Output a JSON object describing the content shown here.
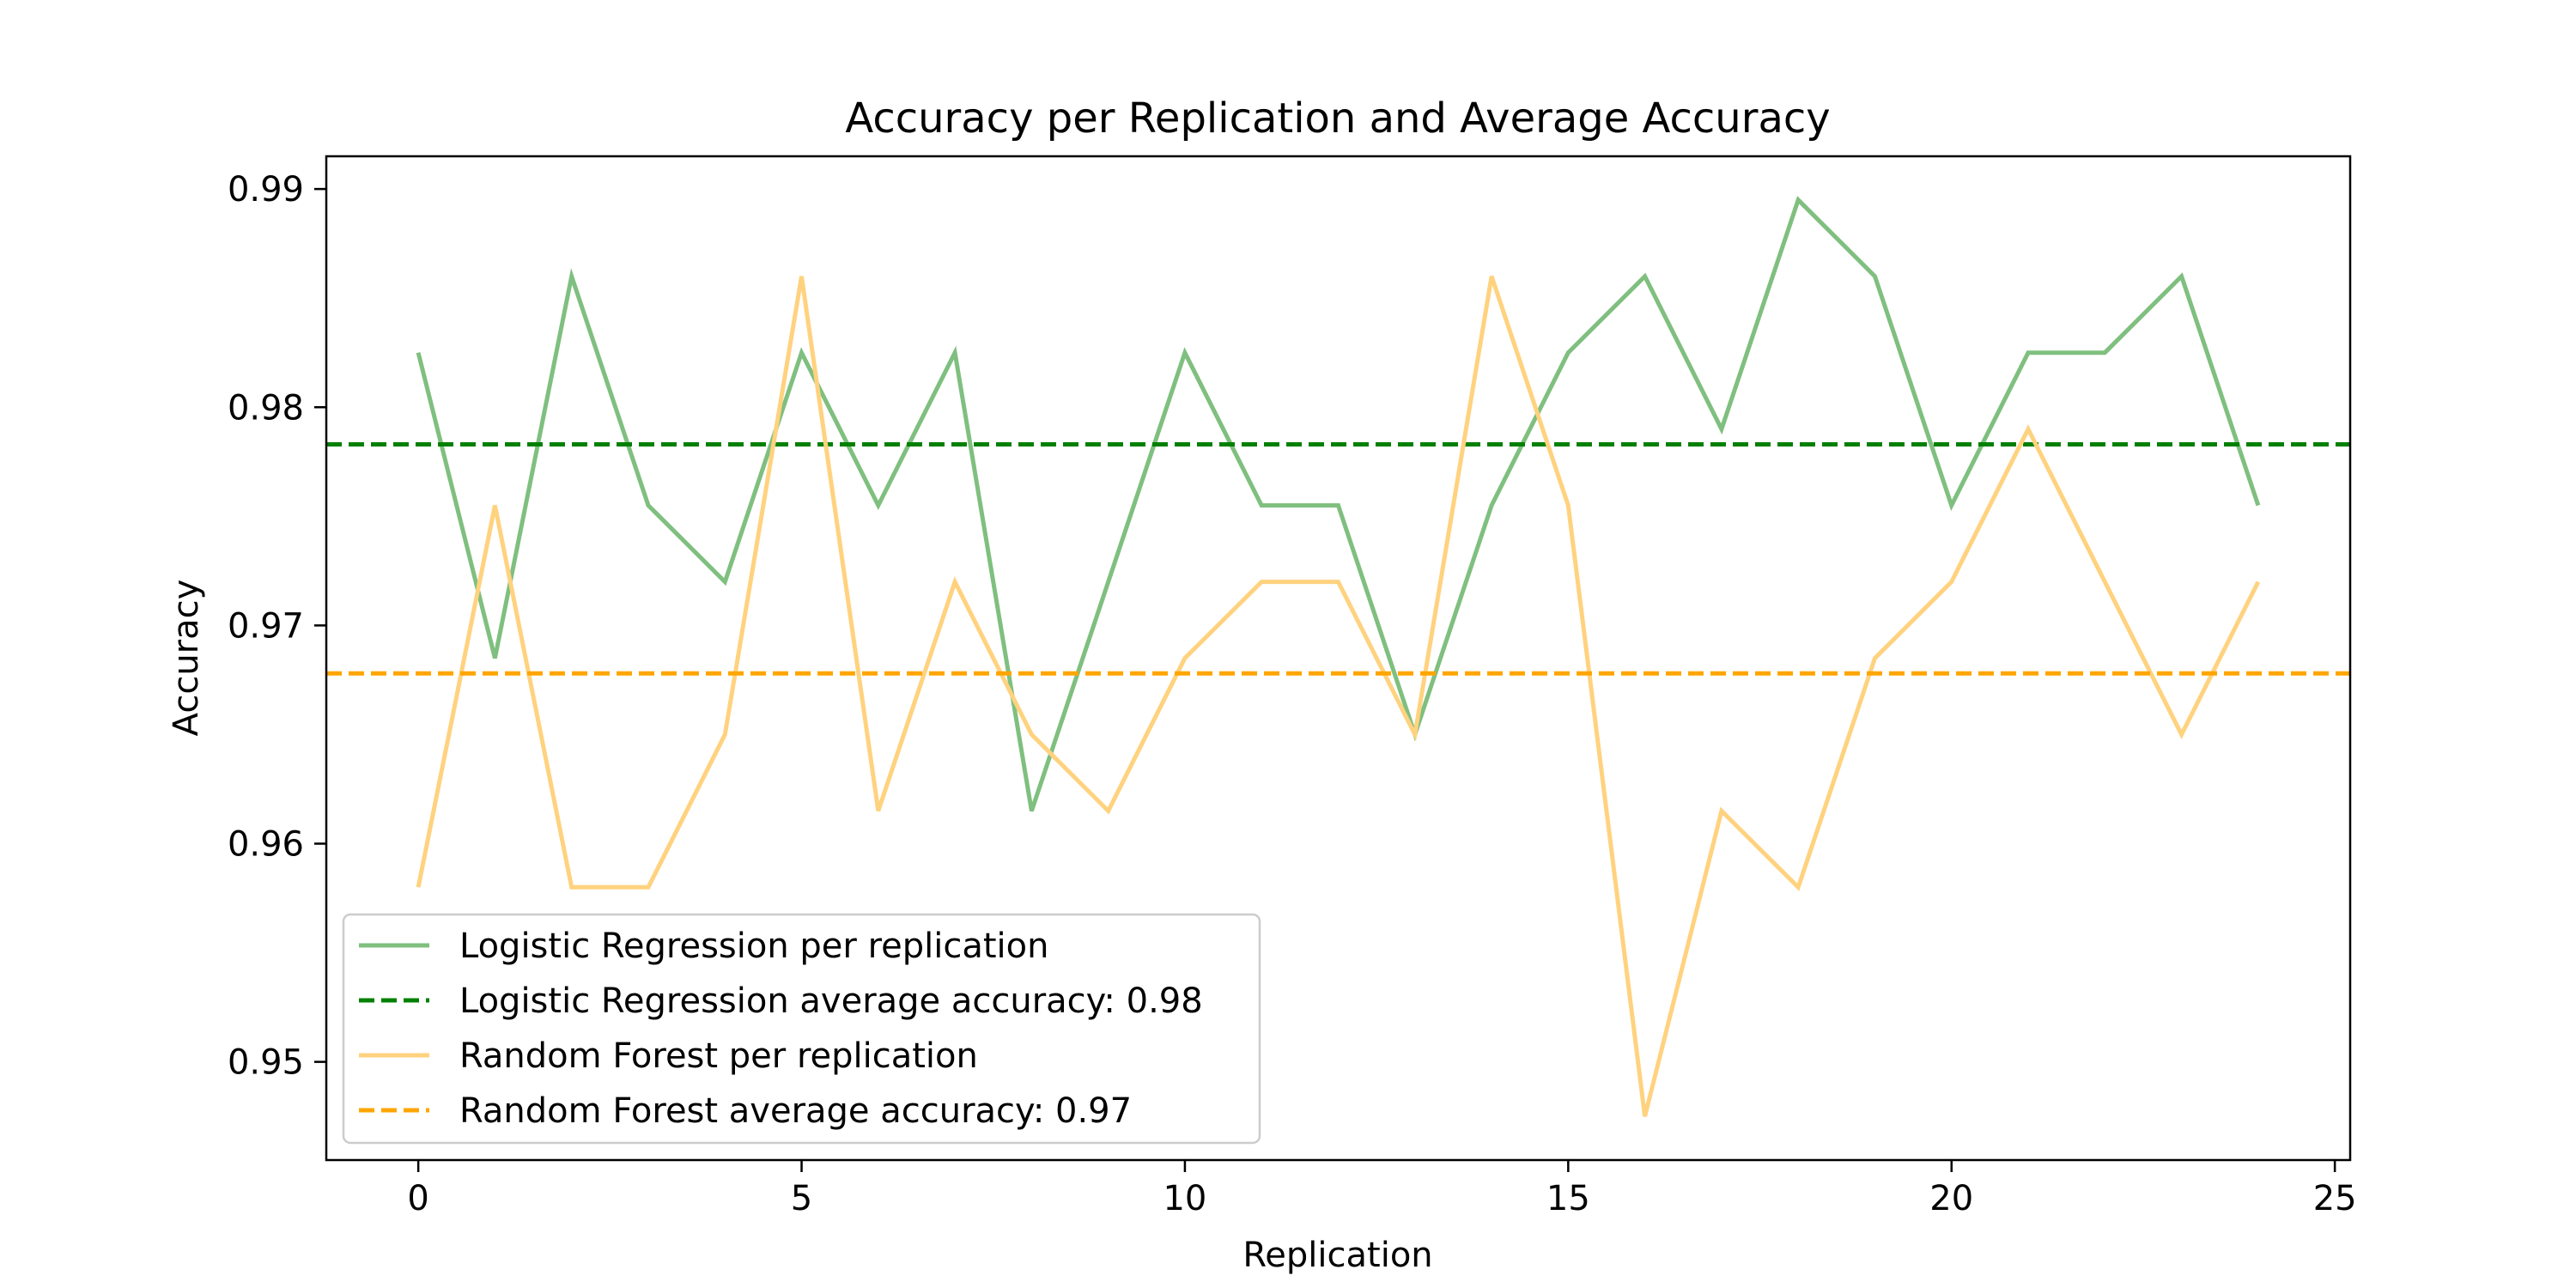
{
  "chart_data": {
    "type": "line",
    "title": "Accuracy per Replication and Average Accuracy",
    "xlabel": "Replication",
    "ylabel": "Accuracy",
    "xlim": [
      -1.2,
      25.2
    ],
    "ylim": [
      0.9455,
      0.9915
    ],
    "xticks": [
      0,
      5,
      10,
      15,
      20,
      25
    ],
    "yticks": [
      0.95,
      0.96,
      0.97,
      0.98,
      0.99
    ],
    "ytick_labels": [
      "0.95",
      "0.96",
      "0.97",
      "0.98",
      "0.99"
    ],
    "grid": false,
    "legend_position": "lower-left",
    "x": [
      0,
      1,
      2,
      3,
      4,
      5,
      6,
      7,
      8,
      9,
      10,
      11,
      12,
      13,
      14,
      15,
      16,
      17,
      18,
      19,
      20,
      21,
      22,
      23,
      24
    ],
    "series": [
      {
        "name": "Logistic Regression per replication",
        "style": "solid",
        "color": "#7fbf7f",
        "values": [
          0.9825,
          0.9685,
          0.986,
          0.9755,
          0.972,
          0.9825,
          0.9755,
          0.9825,
          0.9615,
          0.972,
          0.9825,
          0.9755,
          0.9755,
          0.965,
          0.9755,
          0.9825,
          0.986,
          0.979,
          0.9895,
          0.986,
          0.9755,
          0.9825,
          0.9825,
          0.986,
          0.9755
        ]
      },
      {
        "name": "Logistic Regression average accuracy: 0.98",
        "style": "dashed",
        "color": "#008000",
        "constant": 0.9783
      },
      {
        "name": "Random Forest per replication",
        "style": "solid",
        "color": "#ffd27f",
        "values": [
          0.958,
          0.9755,
          0.958,
          0.958,
          0.965,
          0.986,
          0.9615,
          0.972,
          0.965,
          0.9615,
          0.9685,
          0.972,
          0.972,
          0.965,
          0.986,
          0.9755,
          0.9475,
          0.9615,
          0.958,
          0.9685,
          0.972,
          0.979,
          0.972,
          0.965,
          0.972
        ]
      },
      {
        "name": "Random Forest average accuracy: 0.97",
        "style": "dashed",
        "color": "#ffa500",
        "constant": 0.9678
      }
    ]
  }
}
